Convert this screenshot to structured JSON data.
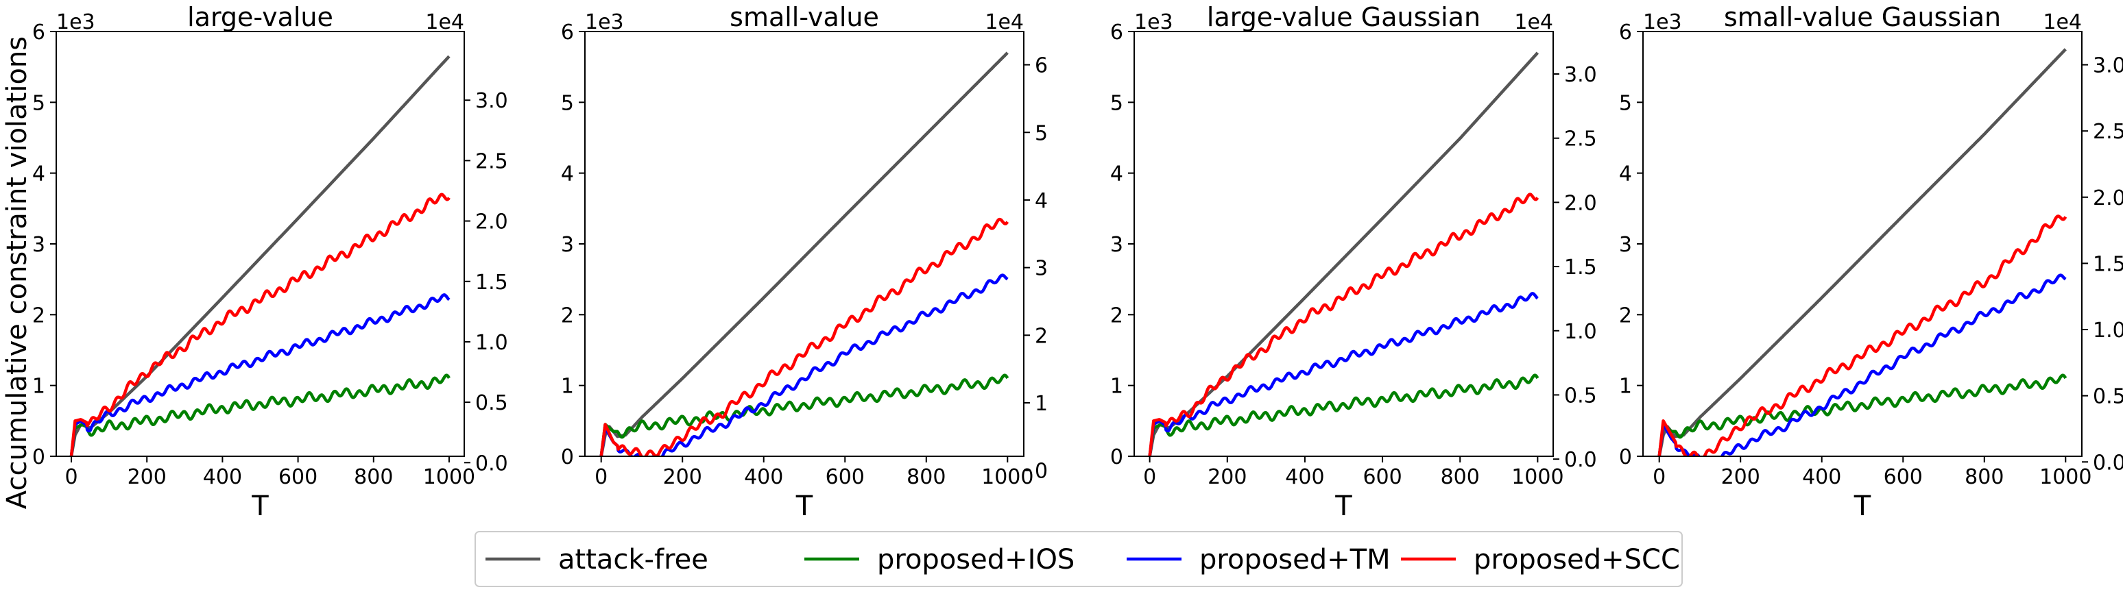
{
  "figure": {
    "ylabel": "Accumulative constraint violations",
    "xlabel": "T",
    "left_axis_multiplier": "1e3",
    "right_axis_multiplier": "1e4"
  },
  "legend": {
    "placement": "bottom-center",
    "items": [
      {
        "label": "attack-free",
        "color": "#555555"
      },
      {
        "label": "proposed+IOS",
        "color": "#008000"
      },
      {
        "label": "proposed+TM",
        "color": "#0000ff"
      },
      {
        "label": "proposed+SCC",
        "color": "#ff0000"
      }
    ]
  },
  "chart_data": [
    {
      "type": "line",
      "title": "large-value",
      "xlabel": "T",
      "ylabel": "Accumulative constraint violations",
      "x_ticks": [
        0,
        200,
        400,
        600,
        800,
        1000
      ],
      "xlim": [
        -40,
        1040
      ],
      "ylim": [
        0,
        6
      ],
      "y_ticks": [
        0,
        1,
        2,
        3,
        4,
        5,
        6
      ],
      "y_multiplier": "1e3",
      "secondary_y": {
        "multiplier": "1e4",
        "ticks": [
          "0.0",
          "0.5",
          "1.0",
          "1.5",
          "2.0",
          "2.5",
          "3.0"
        ],
        "values": [
          0,
          0.5,
          1,
          1.5,
          2,
          2.5,
          3
        ],
        "map": [
          -0.09,
          0.82,
          5.03,
          0.82
        ]
      },
      "grid": false,
      "series": [
        {
          "name": "attack-free",
          "color": "#555555",
          "osc": 0,
          "points": [
            [
              0,
              0
            ],
            [
              10,
              0.3
            ],
            [
              25,
              0.45
            ],
            [
              50,
              0.4
            ],
            [
              100,
              0.62
            ],
            [
              200,
              1.13
            ],
            [
              400,
              2.24
            ],
            [
              600,
              3.36
            ],
            [
              800,
              4.49
            ],
            [
              1000,
              5.65
            ]
          ]
        },
        {
          "name": "proposed+IOS",
          "color": "#008000",
          "osc": 0.05,
          "points": [
            [
              0,
              0
            ],
            [
              10,
              0.4
            ],
            [
              30,
              0.45
            ],
            [
              60,
              0.35
            ],
            [
              100,
              0.42
            ],
            [
              200,
              0.5
            ],
            [
              400,
              0.68
            ],
            [
              600,
              0.8
            ],
            [
              800,
              0.93
            ],
            [
              1000,
              1.08
            ]
          ]
        },
        {
          "name": "proposed+TM",
          "color": "#0000ff",
          "osc": 0.04,
          "points": [
            [
              0,
              0
            ],
            [
              10,
              0.45
            ],
            [
              25,
              0.5
            ],
            [
              50,
              0.4
            ],
            [
              100,
              0.6
            ],
            [
              200,
              0.82
            ],
            [
              400,
              1.2
            ],
            [
              600,
              1.55
            ],
            [
              800,
              1.9
            ],
            [
              1000,
              2.26
            ]
          ]
        },
        {
          "name": "proposed+SCC",
          "color": "#ff0000",
          "osc": 0.05,
          "points": [
            [
              0,
              0
            ],
            [
              10,
              0.5
            ],
            [
              25,
              0.52
            ],
            [
              50,
              0.45
            ],
            [
              100,
              0.7
            ],
            [
              200,
              1.2
            ],
            [
              400,
              1.92
            ],
            [
              600,
              2.5
            ],
            [
              800,
              3.1
            ],
            [
              1000,
              3.72
            ]
          ]
        }
      ]
    },
    {
      "type": "line",
      "title": "small-value",
      "xlabel": "T",
      "ylabel": "",
      "x_ticks": [
        0,
        200,
        400,
        600,
        800,
        1000
      ],
      "xlim": [
        -40,
        1040
      ],
      "ylim": [
        0,
        6
      ],
      "y_ticks": [
        0,
        1,
        2,
        3,
        4,
        5,
        6
      ],
      "y_multiplier": "1e3",
      "secondary_y": {
        "multiplier": "1e4",
        "ticks": [
          "0",
          "1",
          "2",
          "3",
          "4",
          "5",
          "6"
        ],
        "values": [
          0,
          1,
          2,
          3,
          4,
          5,
          6
        ],
        "map": [
          -0.2,
          0.95,
          5.53,
          0.95
        ]
      },
      "grid": false,
      "series": [
        {
          "name": "attack-free",
          "color": "#555555",
          "osc": 0,
          "points": [
            [
              0,
              0
            ],
            [
              10,
              0.3
            ],
            [
              20,
              0.42
            ],
            [
              40,
              0.28
            ],
            [
              60,
              0.3
            ],
            [
              100,
              0.55
            ],
            [
              200,
              1.1
            ],
            [
              400,
              2.24
            ],
            [
              600,
              3.4
            ],
            [
              800,
              4.55
            ],
            [
              1000,
              5.7
            ]
          ]
        },
        {
          "name": "proposed+IOS",
          "color": "#008000",
          "osc": 0.05,
          "points": [
            [
              0,
              0
            ],
            [
              10,
              0.45
            ],
            [
              30,
              0.35
            ],
            [
              60,
              0.35
            ],
            [
              100,
              0.42
            ],
            [
              200,
              0.5
            ],
            [
              400,
              0.65
            ],
            [
              600,
              0.8
            ],
            [
              800,
              0.93
            ],
            [
              1000,
              1.08
            ]
          ]
        },
        {
          "name": "proposed+TM",
          "color": "#0000ff",
          "osc": 0.04,
          "points": [
            [
              0,
              0
            ],
            [
              10,
              0.4
            ],
            [
              30,
              0.2
            ],
            [
              60,
              0.05
            ],
            [
              100,
              -0.05
            ],
            [
              150,
              0.0
            ],
            [
              200,
              0.18
            ],
            [
              300,
              0.45
            ],
            [
              400,
              0.75
            ],
            [
              600,
              1.45
            ],
            [
              800,
              2.0
            ],
            [
              1000,
              2.55
            ]
          ]
        },
        {
          "name": "proposed+SCC",
          "color": "#ff0000",
          "osc": 0.05,
          "points": [
            [
              0,
              0
            ],
            [
              10,
              0.45
            ],
            [
              30,
              0.2
            ],
            [
              60,
              0.05
            ],
            [
              100,
              0.05
            ],
            [
              150,
              0.05
            ],
            [
              200,
              0.3
            ],
            [
              300,
              0.62
            ],
            [
              400,
              1.05
            ],
            [
              600,
              1.85
            ],
            [
              800,
              2.65
            ],
            [
              1000,
              3.38
            ]
          ]
        }
      ]
    },
    {
      "type": "line",
      "title": "large-value Gaussian",
      "xlabel": "T",
      "ylabel": "",
      "x_ticks": [
        0,
        200,
        400,
        600,
        800,
        1000
      ],
      "xlim": [
        -40,
        1040
      ],
      "ylim": [
        0,
        6
      ],
      "y_ticks": [
        0,
        1,
        2,
        3,
        4,
        5,
        6
      ],
      "y_multiplier": "1e3",
      "secondary_y": {
        "multiplier": "1e4",
        "ticks": [
          "0.0",
          "0.5",
          "1.0",
          "1.5",
          "2.0",
          "2.5",
          "3.0"
        ],
        "values": [
          0,
          0.5,
          1,
          1.5,
          2,
          2.5,
          3
        ],
        "map": [
          -0.04,
          1.07,
          5.4,
          1.07
        ]
      },
      "grid": false,
      "series": [
        {
          "name": "attack-free",
          "color": "#555555",
          "osc": 0,
          "points": [
            [
              0,
              0
            ],
            [
              10,
              0.3
            ],
            [
              25,
              0.45
            ],
            [
              50,
              0.4
            ],
            [
              100,
              0.62
            ],
            [
              200,
              1.13
            ],
            [
              400,
              2.24
            ],
            [
              600,
              3.36
            ],
            [
              800,
              4.49
            ],
            [
              1000,
              5.7
            ]
          ]
        },
        {
          "name": "proposed+IOS",
          "color": "#008000",
          "osc": 0.05,
          "points": [
            [
              0,
              0
            ],
            [
              10,
              0.4
            ],
            [
              30,
              0.45
            ],
            [
              60,
              0.35
            ],
            [
              100,
              0.42
            ],
            [
              200,
              0.5
            ],
            [
              400,
              0.65
            ],
            [
              600,
              0.8
            ],
            [
              800,
              0.93
            ],
            [
              1000,
              1.08
            ]
          ]
        },
        {
          "name": "proposed+TM",
          "color": "#0000ff",
          "osc": 0.04,
          "points": [
            [
              0,
              0
            ],
            [
              10,
              0.45
            ],
            [
              25,
              0.5
            ],
            [
              50,
              0.4
            ],
            [
              100,
              0.55
            ],
            [
              200,
              0.8
            ],
            [
              400,
              1.2
            ],
            [
              600,
              1.55
            ],
            [
              800,
              1.9
            ],
            [
              1000,
              2.28
            ]
          ]
        },
        {
          "name": "proposed+SCC",
          "color": "#ff0000",
          "osc": 0.05,
          "points": [
            [
              0,
              0
            ],
            [
              10,
              0.5
            ],
            [
              25,
              0.52
            ],
            [
              50,
              0.45
            ],
            [
              100,
              0.62
            ],
            [
              200,
              1.15
            ],
            [
              400,
              1.95
            ],
            [
              600,
              2.55
            ],
            [
              800,
              3.12
            ],
            [
              1000,
              3.72
            ]
          ]
        }
      ]
    },
    {
      "type": "line",
      "title": "small-value Gaussian",
      "xlabel": "T",
      "ylabel": "",
      "x_ticks": [
        0,
        200,
        400,
        600,
        800,
        1000
      ],
      "xlim": [
        -40,
        1040
      ],
      "ylim": [
        0,
        6
      ],
      "y_ticks": [
        0,
        1,
        2,
        3,
        4,
        5,
        6
      ],
      "y_multiplier": "1e3",
      "secondary_y": {
        "multiplier": "1e4",
        "ticks": [
          "0.0",
          "0.5",
          "1.0",
          "1.5",
          "2.0",
          "2.5",
          "3.0"
        ],
        "values": [
          0,
          0.5,
          1,
          1.5,
          2,
          2.5,
          3
        ],
        "map": [
          -0.08,
          0.89,
          5.53,
          0.89
        ]
      },
      "grid": false,
      "series": [
        {
          "name": "attack-free",
          "color": "#555555",
          "osc": 0,
          "points": [
            [
              0,
              0
            ],
            [
              10,
              0.3
            ],
            [
              20,
              0.42
            ],
            [
              40,
              0.28
            ],
            [
              60,
              0.3
            ],
            [
              100,
              0.55
            ],
            [
              200,
              1.1
            ],
            [
              400,
              2.24
            ],
            [
              600,
              3.4
            ],
            [
              800,
              4.55
            ],
            [
              1000,
              5.75
            ]
          ]
        },
        {
          "name": "proposed+IOS",
          "color": "#008000",
          "osc": 0.05,
          "points": [
            [
              0,
              0
            ],
            [
              10,
              0.45
            ],
            [
              30,
              0.35
            ],
            [
              60,
              0.35
            ],
            [
              100,
              0.42
            ],
            [
              200,
              0.5
            ],
            [
              400,
              0.65
            ],
            [
              600,
              0.8
            ],
            [
              800,
              0.93
            ],
            [
              1000,
              1.08
            ]
          ]
        },
        {
          "name": "proposed+TM",
          "color": "#0000ff",
          "osc": 0.04,
          "points": [
            [
              0,
              0
            ],
            [
              10,
              0.45
            ],
            [
              30,
              0.25
            ],
            [
              60,
              0.05
            ],
            [
              100,
              -0.05
            ],
            [
              150,
              -0.05
            ],
            [
              200,
              0.15
            ],
            [
              300,
              0.4
            ],
            [
              400,
              0.7
            ],
            [
              600,
              1.4
            ],
            [
              800,
              2.0
            ],
            [
              1000,
              2.55
            ]
          ]
        },
        {
          "name": "proposed+SCC",
          "color": "#ff0000",
          "osc": 0.05,
          "points": [
            [
              0,
              0
            ],
            [
              10,
              0.5
            ],
            [
              30,
              0.3
            ],
            [
              60,
              0.0
            ],
            [
              100,
              0.0
            ],
            [
              150,
              0.15
            ],
            [
              200,
              0.45
            ],
            [
              300,
              0.75
            ],
            [
              400,
              1.1
            ],
            [
              600,
              1.75
            ],
            [
              800,
              2.45
            ],
            [
              1000,
              3.45
            ]
          ]
        }
      ]
    }
  ]
}
